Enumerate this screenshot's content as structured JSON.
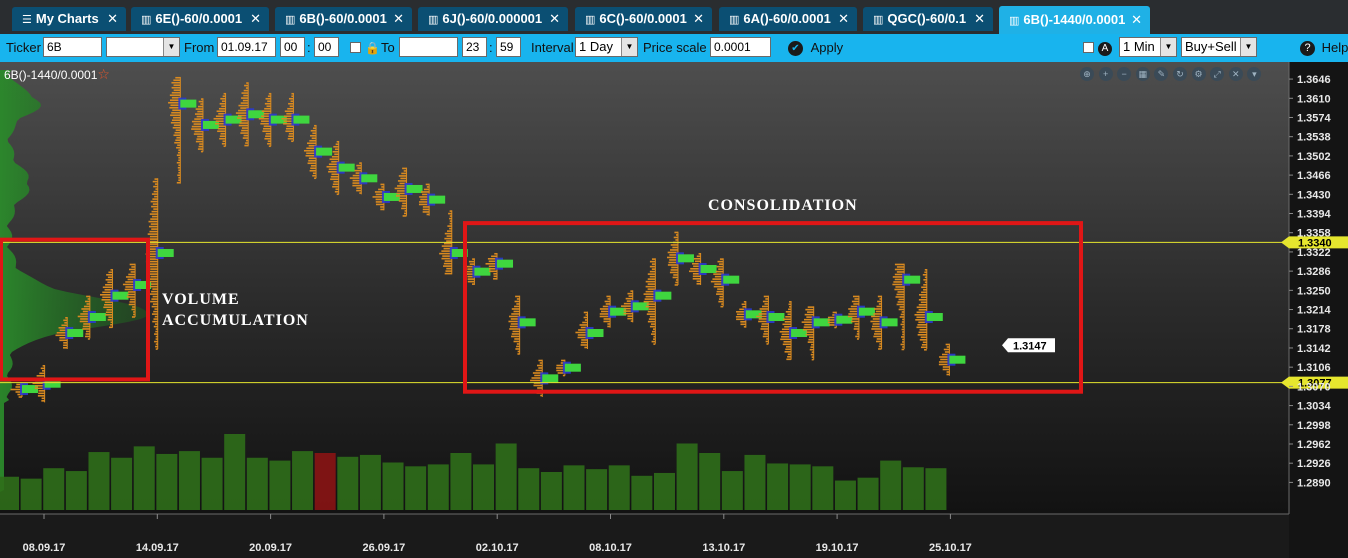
{
  "tabs": [
    {
      "label": "My Charts",
      "icon": "menu-icon",
      "active": false
    },
    {
      "label": "6E()-60/0.0001",
      "icon": "chart-icon",
      "active": false
    },
    {
      "label": "6B()-60/0.0001",
      "icon": "chart-icon",
      "active": false
    },
    {
      "label": "6J()-60/0.000001",
      "icon": "chart-icon",
      "active": false
    },
    {
      "label": "6C()-60/0.0001",
      "icon": "chart-icon",
      "active": false
    },
    {
      "label": "6A()-60/0.0001",
      "icon": "chart-icon",
      "active": false
    },
    {
      "label": "QGC()-60/0.1",
      "icon": "chart-icon",
      "active": false
    },
    {
      "label": "6B()-1440/0.0001",
      "icon": "chart-icon",
      "active": true
    }
  ],
  "toolbar": {
    "ticker_label": "Ticker",
    "ticker_value": "6B",
    "type_value": "",
    "from_label": "From",
    "from_date": "01.09.17",
    "from_hour": "00",
    "from_min": "00",
    "to_label": "To",
    "to_date": "",
    "to_hour": "23",
    "to_min": "59",
    "interval_label": "Interval",
    "interval_value": "1 Day",
    "price_scale_label": "Price scale",
    "price_scale_value": "0.0001",
    "apply_label": "Apply",
    "timeframe_value": "1 Min",
    "side_value": "Buy+Sell",
    "help_label": "Help"
  },
  "chart": {
    "name": "6B()-1440/0.0001",
    "annotations": {
      "volume_line1": "VOLUME",
      "volume_line2": "ACCUMULATION",
      "consolidation": "CONSOLIDATION"
    },
    "tool_icons": [
      "zoom-fit-icon",
      "zoom-in-icon",
      "zoom-out-icon",
      "grid-icon",
      "draw-icon",
      "refresh-icon",
      "settings-icon",
      "expand-icon",
      "close-icon",
      "collapse-icon"
    ]
  },
  "chart_data": {
    "type": "footprint-candles",
    "y_ticks": [
      1.3646,
      1.361,
      1.3574,
      1.3538,
      1.3502,
      1.3466,
      1.343,
      1.3394,
      1.3358,
      1.3322,
      1.3286,
      1.325,
      1.3214,
      1.3178,
      1.3142,
      1.3106,
      1.307,
      1.3034,
      1.2998,
      1.2962,
      1.2926,
      1.289
    ],
    "ylim": [
      1.2872,
      1.3663
    ],
    "x_ticks": [
      "08.09.17",
      "14.09.17",
      "20.09.17",
      "26.09.17",
      "02.10.17",
      "08.10.17",
      "13.10.17",
      "19.10.17",
      "25.10.17"
    ],
    "level_lines": [
      {
        "label": "1.3340",
        "value": 1.334,
        "color": "#e6e62e"
      },
      {
        "label": "1.3077",
        "value": 1.3077,
        "color": "#e6e62e"
      }
    ],
    "last_price": {
      "label": "1.3147",
      "value": 1.3147
    },
    "candles": [
      {
        "high": 1.3075,
        "low": 1.305,
        "mid": 1.3065
      },
      {
        "high": 1.311,
        "low": 1.304,
        "mid": 1.3075
      },
      {
        "high": 1.32,
        "low": 1.314,
        "mid": 1.317
      },
      {
        "high": 1.324,
        "low": 1.316,
        "mid": 1.32
      },
      {
        "high": 1.329,
        "low": 1.318,
        "mid": 1.324
      },
      {
        "high": 1.33,
        "low": 1.32,
        "mid": 1.326
      },
      {
        "high": 1.346,
        "low": 1.314,
        "mid": 1.332
      },
      {
        "high": 1.365,
        "low": 1.345,
        "mid": 1.36
      },
      {
        "high": 1.361,
        "low": 1.351,
        "mid": 1.356
      },
      {
        "high": 1.362,
        "low": 1.352,
        "mid": 1.357
      },
      {
        "high": 1.364,
        "low": 1.352,
        "mid": 1.358
      },
      {
        "high": 1.362,
        "low": 1.352,
        "mid": 1.357
      },
      {
        "high": 1.362,
        "low": 1.353,
        "mid": 1.357
      },
      {
        "high": 1.356,
        "low": 1.346,
        "mid": 1.351
      },
      {
        "high": 1.353,
        "low": 1.343,
        "mid": 1.348
      },
      {
        "high": 1.349,
        "low": 1.343,
        "mid": 1.346
      },
      {
        "high": 1.345,
        "low": 1.34,
        "mid": 1.3425
      },
      {
        "high": 1.348,
        "low": 1.339,
        "mid": 1.344
      },
      {
        "high": 1.345,
        "low": 1.339,
        "mid": 1.342
      },
      {
        "high": 1.34,
        "low": 1.328,
        "mid": 1.332
      },
      {
        "high": 1.331,
        "low": 1.326,
        "mid": 1.3285
      },
      {
        "high": 1.332,
        "low": 1.327,
        "mid": 1.33
      },
      {
        "high": 1.324,
        "low": 1.313,
        "mid": 1.319
      },
      {
        "high": 1.312,
        "low": 1.305,
        "mid": 1.3085
      },
      {
        "high": 1.312,
        "low": 1.309,
        "mid": 1.3105
      },
      {
        "high": 1.321,
        "low": 1.314,
        "mid": 1.317
      },
      {
        "high": 1.324,
        "low": 1.318,
        "mid": 1.321
      },
      {
        "high": 1.325,
        "low": 1.319,
        "mid": 1.322
      },
      {
        "high": 1.331,
        "low": 1.315,
        "mid": 1.324
      },
      {
        "high": 1.336,
        "low": 1.326,
        "mid": 1.331
      },
      {
        "high": 1.332,
        "low": 1.326,
        "mid": 1.329
      },
      {
        "high": 1.331,
        "low": 1.322,
        "mid": 1.327
      },
      {
        "high": 1.323,
        "low": 1.318,
        "mid": 1.3205
      },
      {
        "high": 1.324,
        "low": 1.315,
        "mid": 1.32
      },
      {
        "high": 1.323,
        "low": 1.312,
        "mid": 1.317
      },
      {
        "high": 1.322,
        "low": 1.312,
        "mid": 1.319
      },
      {
        "high": 1.321,
        "low": 1.318,
        "mid": 1.3195
      },
      {
        "high": 1.324,
        "low": 1.316,
        "mid": 1.321
      },
      {
        "high": 1.324,
        "low": 1.314,
        "mid": 1.319
      },
      {
        "high": 1.33,
        "low": 1.314,
        "mid": 1.327
      },
      {
        "high": 1.329,
        "low": 1.314,
        "mid": 1.32
      },
      {
        "high": 1.315,
        "low": 1.309,
        "mid": 1.312
      }
    ],
    "volume_bars": [
      0.35,
      0.33,
      0.44,
      0.41,
      0.61,
      0.55,
      0.67,
      0.59,
      0.62,
      0.55,
      0.8,
      0.55,
      0.52,
      0.62,
      0.6,
      0.56,
      0.58,
      0.5,
      0.46,
      0.48,
      0.6,
      0.48,
      0.7,
      0.44,
      0.4,
      0.47,
      0.43,
      0.47,
      0.36,
      0.39,
      0.7,
      0.6,
      0.41,
      0.58,
      0.49,
      0.48,
      0.46,
      0.31,
      0.34,
      0.52,
      0.45,
      0.44
    ],
    "highlighted_volume_index": 14,
    "boxes": [
      {
        "name": "volume-accumulation-box",
        "price_top": 1.3345,
        "price_bottom": 1.3083
      },
      {
        "name": "consolidation-box",
        "price_top": 1.3376,
        "price_bottom": 1.306
      }
    ]
  },
  "colors": {
    "tab_bg": "#0b4f73",
    "tab_active_bg": "#1fb1e6",
    "toolbar_bg": "#18b4ee",
    "level_line": "#e6e62e",
    "box": "#e01616",
    "volume": "#2f6e1a",
    "volume_highlight": "#8a1414",
    "profile_green": "#3fd63f",
    "profile_orange": "#d98a20",
    "profile_blue": "#2a3ad0"
  }
}
